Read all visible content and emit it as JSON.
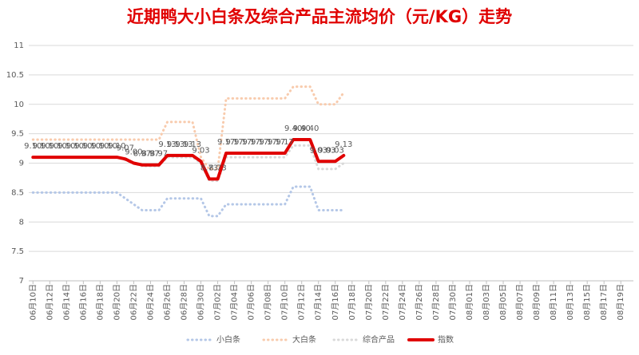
{
  "chart_data": {
    "type": "line",
    "title": "近期鸭大小白条及综合产品主流均价（元/KG）走势",
    "categories": [
      "06月10日",
      null,
      "06月12日",
      null,
      "06月14日",
      null,
      "06月16日",
      null,
      "06月18日",
      null,
      "06月20日",
      null,
      "06月22日",
      null,
      "06月24日",
      null,
      "06月26日",
      null,
      "06月28日",
      null,
      "06月30日",
      null,
      "07月02日",
      null,
      "07月04日",
      null,
      "07月06日",
      null,
      "07月08日",
      null,
      "07月10日",
      null,
      "07月12日",
      null,
      "07月14日",
      null,
      "07月16日",
      null,
      "07月18日",
      null,
      "07月20日",
      null,
      "07月22日",
      null,
      "07月24日",
      null,
      "07月26日",
      null,
      "07月28日",
      null,
      "07月30日",
      null,
      "08月01日",
      null,
      "08月03日",
      null,
      "08月05日",
      null,
      "08月07日",
      null,
      "08月09日",
      null,
      "08月11日",
      null,
      "08月13日",
      null,
      "08月15日",
      null,
      "08月17日",
      null,
      "08月19日",
      null
    ],
    "ylim": [
      7,
      11
    ],
    "yticks": [
      7,
      7.5,
      8,
      8.5,
      9,
      9.5,
      10,
      10.5,
      11
    ],
    "grid": true,
    "series": [
      {
        "name": "小白条",
        "color": "#b4c7e7",
        "style": "dotted",
        "values": [
          8.5,
          8.5,
          8.5,
          8.5,
          8.5,
          8.5,
          8.5,
          8.5,
          8.5,
          8.5,
          8.5,
          8.4,
          8.3,
          8.2,
          8.2,
          8.2,
          8.4,
          8.4,
          8.4,
          8.4,
          8.4,
          8.1,
          8.1,
          8.3,
          8.3,
          8.3,
          8.3,
          8.3,
          8.3,
          8.3,
          8.3,
          8.6,
          8.6,
          8.6,
          8.2,
          8.2,
          8.2,
          8.2,
          null,
          null,
          null,
          null,
          null,
          null,
          null,
          null,
          null,
          null,
          null,
          null,
          null,
          null,
          null,
          null,
          null,
          null,
          null,
          null,
          null,
          null,
          null,
          null,
          null,
          null,
          null,
          null,
          null,
          null,
          null,
          null,
          null,
          null
        ]
      },
      {
        "name": "大白条",
        "color": "#f8cbad",
        "style": "dotted",
        "values": [
          9.4,
          9.4,
          9.4,
          9.4,
          9.4,
          9.4,
          9.4,
          9.4,
          9.4,
          9.4,
          9.4,
          9.4,
          9.4,
          9.4,
          9.4,
          9.4,
          9.7,
          9.7,
          9.7,
          9.7,
          9.1,
          8.9,
          8.9,
          10.1,
          10.1,
          10.1,
          10.1,
          10.1,
          10.1,
          10.1,
          10.1,
          10.3,
          10.3,
          10.3,
          10,
          10,
          10,
          10.2,
          null,
          null,
          null,
          null,
          null,
          null,
          null,
          null,
          null,
          null,
          null,
          null,
          null,
          null,
          null,
          null,
          null,
          null,
          null,
          null,
          null,
          null,
          null,
          null,
          null,
          null,
          null,
          null,
          null,
          null,
          null,
          null,
          null,
          null
        ]
      },
      {
        "name": "综合产品",
        "color": "#d9d9d9",
        "style": "dotted",
        "values": [
          9.1,
          9.1,
          9.1,
          9.1,
          9.1,
          9.1,
          9.1,
          9.1,
          9.1,
          9.1,
          9.1,
          9.05,
          9,
          8.95,
          8.95,
          8.95,
          9.1,
          9.1,
          9.1,
          9.1,
          9,
          8.7,
          8.7,
          9.1,
          9.1,
          9.1,
          9.1,
          9.1,
          9.1,
          9.1,
          9.1,
          9.3,
          9.3,
          9.3,
          8.9,
          8.9,
          8.9,
          9,
          null,
          null,
          null,
          null,
          null,
          null,
          null,
          null,
          null,
          null,
          null,
          null,
          null,
          null,
          null,
          null,
          null,
          null,
          null,
          null,
          null,
          null,
          null,
          null,
          null,
          null,
          null,
          null,
          null,
          null,
          null,
          null,
          null,
          null
        ]
      },
      {
        "name": "指数",
        "color": "#e00000",
        "style": "solid",
        "values": [
          9.1,
          9.1,
          9.1,
          9.1,
          9.1,
          9.1,
          9.1,
          9.1,
          9.1,
          9.1,
          9.1,
          9.07,
          9,
          8.97,
          8.97,
          8.97,
          9.13,
          9.13,
          9.13,
          9.13,
          9.03,
          8.73,
          8.73,
          9.17,
          9.17,
          9.17,
          9.17,
          9.17,
          9.17,
          9.17,
          9.17,
          9.4,
          9.4,
          9.4,
          9.03,
          9.03,
          9.03,
          9.13,
          null,
          null,
          null,
          null,
          null,
          null,
          null,
          null,
          null,
          null,
          null,
          null,
          null,
          null,
          null,
          null,
          null,
          null,
          null,
          null,
          null,
          null,
          null,
          null,
          null,
          null,
          null,
          null,
          null,
          null,
          null,
          null,
          null,
          null
        ],
        "value_labels": [
          "9.10",
          "9.10",
          "9.10",
          "9.10",
          "9.10",
          "9.10",
          "9.10",
          "9.10",
          "9.10",
          "9.10",
          "9.10",
          "9.07",
          "9.00",
          "8.97",
          "8.97",
          "8.97",
          "9.13",
          "9.13",
          "9.13",
          "9.13",
          "9.03",
          "8.73",
          "8.73",
          "9.17",
          "9.17",
          "9.17",
          "9.17",
          "9.17",
          "9.17",
          "9.17",
          "9.17",
          "9.40",
          "9.40",
          "9.40",
          "9.03",
          "9.03",
          "9.03",
          "9.13",
          null,
          null,
          null,
          null,
          null,
          null,
          null,
          null,
          null,
          null,
          null,
          null,
          null,
          null,
          null,
          null,
          null,
          null,
          null,
          null,
          null,
          null,
          null,
          null,
          null,
          null,
          null,
          null,
          null,
          null,
          null,
          null,
          null,
          null
        ]
      }
    ]
  }
}
